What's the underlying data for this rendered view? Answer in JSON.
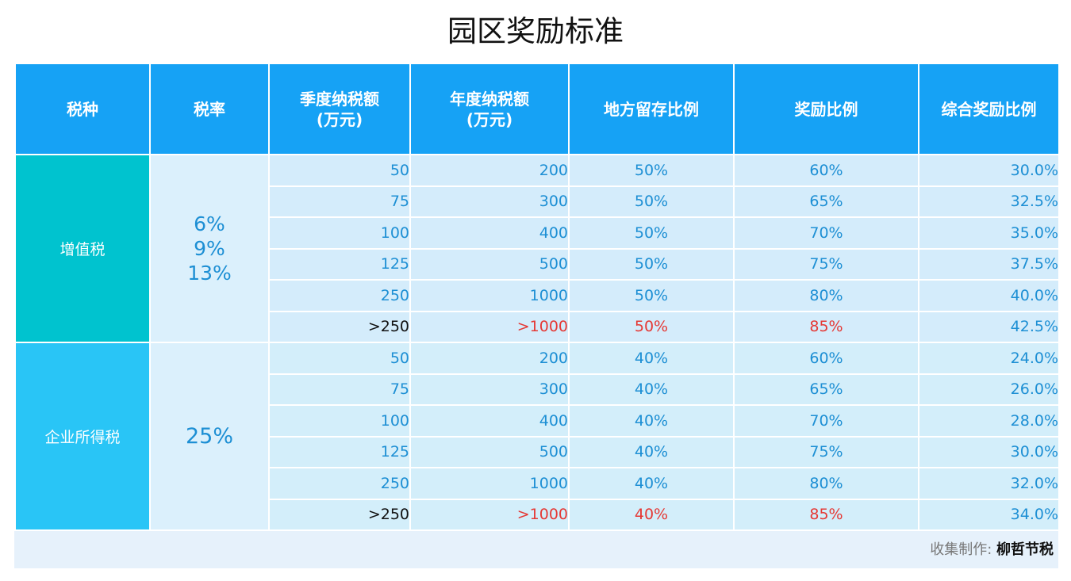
{
  "title": "园区奖励标准",
  "headers": {
    "tax_type": "税种",
    "tax_rate": "税率",
    "quarterly_tax_line1": "季度纳税额",
    "quarterly_tax_line2": "(万元)",
    "annual_tax_line1": "年度纳税额",
    "annual_tax_line2": "(万元)",
    "local_retention": "地方留存比例",
    "reward_ratio": "奖励比例",
    "total_reward_ratio": "综合奖励比例"
  },
  "groups": [
    {
      "tax_type": "增值税",
      "rates": [
        "6%",
        "9%",
        "13%"
      ],
      "rows": [
        {
          "quarterly": "50",
          "annual": "200",
          "retention": "50%",
          "reward": "60%",
          "total": "30.0%"
        },
        {
          "quarterly": "75",
          "annual": "300",
          "retention": "50%",
          "reward": "65%",
          "total": "32.5%"
        },
        {
          "quarterly": "100",
          "annual": "400",
          "retention": "50%",
          "reward": "70%",
          "total": "35.0%"
        },
        {
          "quarterly": "125",
          "annual": "500",
          "retention": "50%",
          "reward": "75%",
          "total": "37.5%"
        },
        {
          "quarterly": "250",
          "annual": "1000",
          "retention": "50%",
          "reward": "80%",
          "total": "40.0%"
        },
        {
          "quarterly": ">250",
          "annual": ">1000",
          "retention": "50%",
          "reward": "85%",
          "total": "42.5%"
        }
      ]
    },
    {
      "tax_type": "企业所得税",
      "rates": [
        "25%"
      ],
      "rows": [
        {
          "quarterly": "50",
          "annual": "200",
          "retention": "40%",
          "reward": "60%",
          "total": "24.0%"
        },
        {
          "quarterly": "75",
          "annual": "300",
          "retention": "40%",
          "reward": "65%",
          "total": "26.0%"
        },
        {
          "quarterly": "100",
          "annual": "400",
          "retention": "40%",
          "reward": "70%",
          "total": "28.0%"
        },
        {
          "quarterly": "125",
          "annual": "500",
          "retention": "40%",
          "reward": "75%",
          "total": "30.0%"
        },
        {
          "quarterly": "250",
          "annual": "1000",
          "retention": "40%",
          "reward": "80%",
          "total": "32.0%"
        },
        {
          "quarterly": ">250",
          "annual": ">1000",
          "retention": "40%",
          "reward": "85%",
          "total": "34.0%"
        }
      ]
    }
  ],
  "footer": {
    "label": "收集制作: ",
    "author": "柳哲节税"
  },
  "colors": {
    "header_bg": "#16a2f5",
    "vat_cell": "#00c3cf",
    "cit_cell": "#29c5f6",
    "value_blue": "#1d8fd4",
    "highlight_red": "#e53935"
  }
}
